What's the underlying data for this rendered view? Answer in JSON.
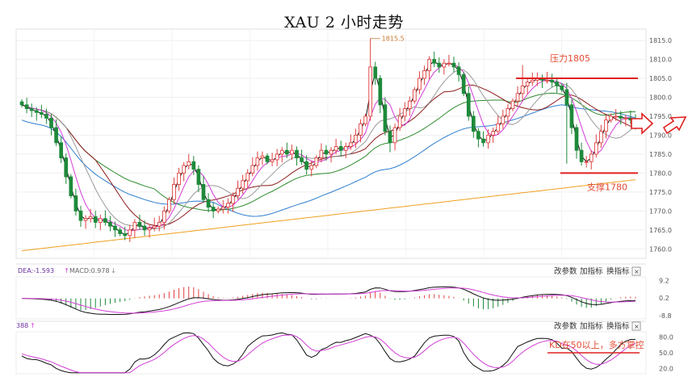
{
  "title": "XAU 2 小时走势",
  "chart_data": [
    {
      "type": "candlestick",
      "title": "XAU 2 小时走势",
      "y_ticks": [
        1815.0,
        1810.0,
        1805.0,
        1800.0,
        1795.0,
        1790.0,
        1785.0,
        1780.0,
        1775.0,
        1770.0,
        1765.0,
        1760.0
      ],
      "ylim": [
        1757.5,
        1818
      ],
      "grid": true,
      "close": [
        1798,
        1797,
        1796.5,
        1796,
        1795.5,
        1794.5,
        1792,
        1788,
        1784,
        1779,
        1774,
        1770,
        1767.5,
        1768,
        1768.5,
        1767,
        1768,
        1767,
        1766,
        1765,
        1764,
        1763.5,
        1765,
        1767,
        1766,
        1765,
        1765.5,
        1766,
        1767,
        1770,
        1773,
        1777,
        1780,
        1782,
        1783,
        1781,
        1777,
        1773,
        1771,
        1770,
        1770.5,
        1771,
        1772,
        1774,
        1776,
        1778,
        1780,
        1782,
        1784,
        1784.5,
        1783,
        1783.5,
        1785,
        1786,
        1785,
        1786,
        1784,
        1783,
        1781,
        1782,
        1784,
        1786,
        1785,
        1786,
        1787,
        1786,
        1787,
        1788,
        1790,
        1793,
        1795,
        1808,
        1805,
        1798,
        1791,
        1788,
        1792,
        1795,
        1797,
        1799,
        1802,
        1805,
        1807,
        1810,
        1809,
        1808,
        1809,
        1809,
        1808,
        1806,
        1801,
        1795,
        1791,
        1789,
        1788,
        1790,
        1791,
        1793,
        1795,
        1797,
        1799,
        1801,
        1803,
        1804,
        1804.5,
        1805,
        1804.5,
        1804.5,
        1804,
        1803,
        1802,
        1798,
        1792,
        1786,
        1783,
        1783,
        1785,
        1788,
        1791,
        1794,
        1795,
        1795,
        1794.5,
        1794.5,
        1794,
        1793
      ],
      "annotations": [
        {
          "text": "1815.5",
          "value": 1815.5
        },
        {
          "text": "压力1805",
          "value": 1805
        },
        {
          "text": "支撑1780",
          "value": 1780
        }
      ],
      "resistance": 1805,
      "support": 1780
    },
    {
      "type": "line",
      "panel": "MACD",
      "label_dea": "DEA:-1.593",
      "label_macd": "MACD:0.978",
      "y_ticks": [
        9.2,
        0.2,
        -8.8
      ]
    },
    {
      "type": "line",
      "panel": "KD",
      "label": "388",
      "y_ticks": [
        80.0,
        50.0,
        20.0
      ],
      "annotation": "KD在50以上，多方掌控"
    }
  ],
  "panel_buttons": {
    "change_params": "改参数",
    "add_indicator": "加指标",
    "swap_indicator": "换指标",
    "close": "✕"
  },
  "colors": {
    "up": "#e04040",
    "down": "#1e8a3a",
    "ma_fast": "#111111",
    "ma_pink": "#d23dd6",
    "ma_gray": "#9a9a9a",
    "ma_brown": "#8b1a1a",
    "ma_green": "#2e8b2e",
    "ma_blue": "#2f7fd0",
    "ma_gold": "#f0a020",
    "level_line": "#e02020",
    "annotation": "#e34a33"
  }
}
